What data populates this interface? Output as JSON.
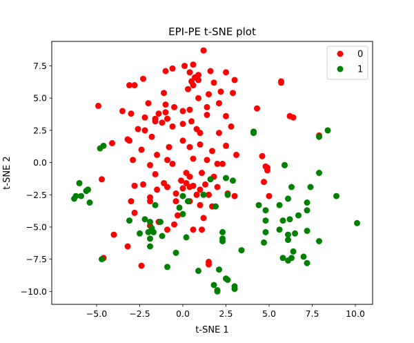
{
  "chart_data": {
    "type": "scatter",
    "title": "EPI-PE t-SNE plot",
    "xlabel": "t-SNE 1",
    "ylabel": "t-SNE 2",
    "xlim": [
      -7.6,
      11.0
    ],
    "ylim": [
      -11.0,
      9.4
    ],
    "xticks": [
      -5.0,
      -2.5,
      0.0,
      2.5,
      5.0,
      7.5,
      10.0
    ],
    "xtick_labels": [
      "−5.0",
      "−2.5",
      "0.0",
      "2.5",
      "5.0",
      "7.5",
      "10.0"
    ],
    "yticks": [
      -10.0,
      -7.5,
      -5.0,
      -2.5,
      0.0,
      2.5,
      5.0,
      7.5
    ],
    "ytick_labels": [
      "−10.0",
      "−7.5",
      "−5.0",
      "−2.5",
      "0.0",
      "2.5",
      "5.0",
      "7.5"
    ],
    "grid": false,
    "legend_position": "top-right",
    "series": [
      {
        "name": "0",
        "color": "#ff0000",
        "points": [
          [
            1.2,
            8.7
          ],
          [
            0.6,
            7.6
          ],
          [
            0.1,
            7.5
          ],
          [
            -0.6,
            7.3
          ],
          [
            0.4,
            7.0
          ],
          [
            1.6,
            7.1
          ],
          [
            2.5,
            7.0
          ],
          [
            -1.0,
            7.1
          ],
          [
            0.9,
            6.8
          ],
          [
            0.7,
            6.6
          ],
          [
            0.9,
            6.4
          ],
          [
            0.5,
            6.3
          ],
          [
            3.0,
            6.4
          ],
          [
            1.8,
            6.2
          ],
          [
            5.7,
            6.3
          ],
          [
            5.7,
            6.2
          ],
          [
            -2.3,
            6.5
          ],
          [
            -3.1,
            6.0
          ],
          [
            -2.8,
            6.0
          ],
          [
            0.6,
            6.0
          ],
          [
            0.3,
            5.7
          ],
          [
            2.2,
            5.5
          ],
          [
            -1.1,
            5.4
          ],
          [
            1.5,
            5.3
          ],
          [
            2.9,
            5.4
          ],
          [
            0.9,
            5.0
          ],
          [
            -4.9,
            4.4
          ],
          [
            -2.0,
            4.6
          ],
          [
            -1.0,
            4.5
          ],
          [
            -0.5,
            4.3
          ],
          [
            0.0,
            4.0
          ],
          [
            0.4,
            4.1
          ],
          [
            1.4,
            4.3
          ],
          [
            2.1,
            4.6
          ],
          [
            4.3,
            4.2
          ],
          [
            -3.5,
            4.0
          ],
          [
            -3.0,
            3.8
          ],
          [
            -1.4,
            3.8
          ],
          [
            -1.0,
            3.9
          ],
          [
            -2.2,
            3.5
          ],
          [
            -1.6,
            3.4
          ],
          [
            -1.6,
            3.2
          ],
          [
            -1.2,
            3.1
          ],
          [
            -0.9,
            3.4
          ],
          [
            0.5,
            3.2
          ],
          [
            1.4,
            3.7
          ],
          [
            2.5,
            3.6
          ],
          [
            6.2,
            3.6
          ],
          [
            6.4,
            3.5
          ],
          [
            0.0,
            3.0
          ],
          [
            -2.6,
            2.6
          ],
          [
            -2.2,
            2.5
          ],
          [
            -0.6,
            2.8
          ],
          [
            0.8,
            2.6
          ],
          [
            1.0,
            2.3
          ],
          [
            2.1,
            2.3
          ],
          [
            2.8,
            2.8
          ],
          [
            -1.8,
            2.0
          ],
          [
            -3.2,
            1.8
          ],
          [
            -3.1,
            1.7
          ],
          [
            -4.1,
            1.5
          ],
          [
            -0.8,
            1.2
          ],
          [
            0.0,
            1.7
          ],
          [
            0.4,
            1.2
          ],
          [
            7.9,
            2.1
          ],
          [
            -2.4,
            1.0
          ],
          [
            1.0,
            1.4
          ],
          [
            2.5,
            1.3
          ],
          [
            1.7,
            0.9
          ],
          [
            -1.5,
            0.6
          ],
          [
            0.6,
            0.3
          ],
          [
            -2.9,
            0.2
          ],
          [
            -0.9,
            0.2
          ],
          [
            1.4,
            0.2
          ],
          [
            3.1,
            0.6
          ],
          [
            4.6,
            0.5
          ],
          [
            -1.9,
            -0.2
          ],
          [
            -0.6,
            -0.1
          ],
          [
            2.0,
            -0.1
          ],
          [
            2.3,
            -0.1
          ],
          [
            4.9,
            -0.4
          ],
          [
            4.8,
            -0.3
          ],
          [
            5.9,
            -0.2
          ],
          [
            -1.6,
            -0.9
          ],
          [
            0.2,
            -0.8
          ],
          [
            1.1,
            -0.8
          ],
          [
            4.9,
            -0.6
          ],
          [
            1.8,
            -1.1
          ],
          [
            0.4,
            -1.1
          ],
          [
            -4.7,
            -1.3
          ],
          [
            -1.1,
            -1.6
          ],
          [
            -0.1,
            -1.4
          ],
          [
            0.2,
            -1.6
          ],
          [
            -2.3,
            -1.7
          ],
          [
            -0.9,
            -1.9
          ],
          [
            0.6,
            -1.8
          ],
          [
            1.3,
            -1.7
          ],
          [
            4.7,
            -1.5
          ],
          [
            -2.8,
            -1.8
          ],
          [
            -1.5,
            -2.1
          ],
          [
            0.0,
            -2.0
          ],
          [
            0.4,
            -1.9
          ],
          [
            1.0,
            -2.1
          ],
          [
            2.0,
            -1.9
          ],
          [
            -0.4,
            -2.4
          ],
          [
            0.8,
            -2.5
          ],
          [
            1.5,
            -2.5
          ],
          [
            2.6,
            -2.4
          ],
          [
            3.0,
            -2.6
          ],
          [
            5.0,
            -2.6
          ],
          [
            -1.9,
            -2.7
          ],
          [
            -3.0,
            -3.0
          ],
          [
            -1.9,
            -3.0
          ],
          [
            -0.4,
            -3.0
          ],
          [
            0.4,
            -3.0
          ],
          [
            1.0,
            -3.3
          ],
          [
            1.7,
            -3.4
          ],
          [
            -2.8,
            -3.9
          ],
          [
            -0.3,
            -4.1
          ],
          [
            1.2,
            -4.3
          ],
          [
            -1.4,
            -4.6
          ],
          [
            -0.5,
            -4.8
          ],
          [
            -1.9,
            -4.9
          ],
          [
            -0.9,
            -5.2
          ],
          [
            0.6,
            -5.2
          ],
          [
            1.1,
            -5.2
          ],
          [
            -4.0,
            -5.6
          ],
          [
            -3.2,
            -6.5
          ],
          [
            -4.6,
            -7.4
          ],
          [
            1.5,
            -7.7
          ],
          [
            1.5,
            -7.9
          ],
          [
            -2.4,
            -8.0
          ]
        ]
      },
      {
        "name": "1",
        "color": "#008000",
        "points": [
          [
            4.1,
            2.4
          ],
          [
            4.1,
            2.3
          ],
          [
            8.4,
            2.5
          ],
          [
            7.9,
            2.0
          ],
          [
            -4.6,
            1.3
          ],
          [
            -4.8,
            1.1
          ],
          [
            5.9,
            -0.2
          ],
          [
            7.9,
            -0.8
          ],
          [
            -6.0,
            -1.6
          ],
          [
            -5.5,
            -2.1
          ],
          [
            -5.6,
            -2.2
          ],
          [
            1.6,
            -1.3
          ],
          [
            2.5,
            -1.2
          ],
          [
            2.9,
            -1.4
          ],
          [
            7.4,
            -1.9
          ],
          [
            6.3,
            -1.9
          ],
          [
            -6.2,
            -2.6
          ],
          [
            -6.3,
            -2.8
          ],
          [
            -5.9,
            -2.6
          ],
          [
            0.0,
            -2.6
          ],
          [
            1.2,
            -2.5
          ],
          [
            2.6,
            -2.5
          ],
          [
            -5.4,
            -3.1
          ],
          [
            0.3,
            -3.0
          ],
          [
            1.9,
            -3.4
          ],
          [
            4.4,
            -3.3
          ],
          [
            5.6,
            -3.3
          ],
          [
            6.1,
            -2.8
          ],
          [
            7.2,
            -3.1
          ],
          [
            8.9,
            -2.6
          ],
          [
            -1.6,
            -3.3
          ],
          [
            -0.2,
            -3.5
          ],
          [
            4.8,
            -3.7
          ],
          [
            7.2,
            -3.7
          ],
          [
            -3.1,
            -4.5
          ],
          [
            -2.2,
            -4.4
          ],
          [
            -1.9,
            -4.6
          ],
          [
            -1.3,
            -4.6
          ],
          [
            0.0,
            -4.0
          ],
          [
            4.8,
            -4.5
          ],
          [
            6.7,
            -4.1
          ],
          [
            6.2,
            -4.4
          ],
          [
            5.8,
            -4.5
          ],
          [
            -2.0,
            -5.4
          ],
          [
            -1.7,
            -5.4
          ],
          [
            -1.8,
            -5.1
          ],
          [
            -2.5,
            -5.5
          ],
          [
            -1.2,
            -5.7
          ],
          [
            0.2,
            -5.8
          ],
          [
            2.3,
            -5.4
          ],
          [
            4.8,
            -5.4
          ],
          [
            5.6,
            -5.2
          ],
          [
            6.1,
            -5.6
          ],
          [
            6.5,
            -5.5
          ],
          [
            7.2,
            -5.3
          ],
          [
            10.1,
            -4.7
          ],
          [
            -1.9,
            -5.9
          ],
          [
            -1.9,
            -6.5
          ],
          [
            2.3,
            -5.9
          ],
          [
            2.3,
            -6.1
          ],
          [
            4.7,
            -6.2
          ],
          [
            6.1,
            -6.0
          ],
          [
            7.9,
            -6.1
          ],
          [
            3.4,
            -6.8
          ],
          [
            -0.4,
            -7.0
          ],
          [
            -4.7,
            -7.5
          ],
          [
            5.8,
            -7.4
          ],
          [
            6.1,
            -7.6
          ],
          [
            6.4,
            -6.9
          ],
          [
            6.3,
            -7.4
          ],
          [
            7.0,
            -7.3
          ],
          [
            -0.9,
            -8.1
          ],
          [
            0.9,
            -8.4
          ],
          [
            2.1,
            -8.3
          ],
          [
            7.2,
            -7.8
          ],
          [
            2.5,
            -9.0
          ],
          [
            2.6,
            -9.1
          ],
          [
            1.8,
            -9.5
          ],
          [
            3.0,
            -9.6
          ],
          [
            3.0,
            -9.8
          ],
          [
            2.0,
            -9.9
          ],
          [
            2.0,
            -10.0
          ]
        ]
      }
    ]
  }
}
